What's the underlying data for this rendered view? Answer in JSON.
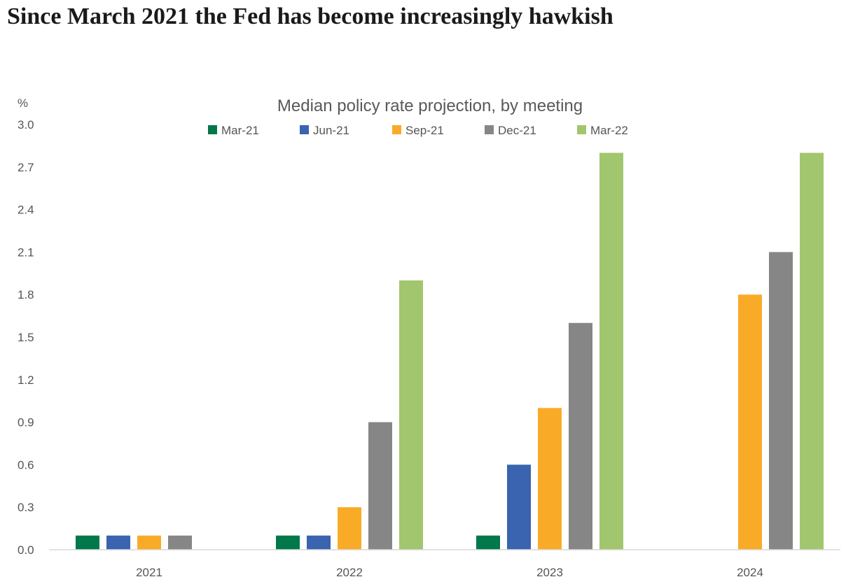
{
  "headline": "Since March 2021 the Fed has become increasingly hawkish",
  "chart_data": {
    "type": "bar",
    "title": "Median policy rate projection, by meeting",
    "ylabel": "%",
    "xlabel": "",
    "categories": [
      "2021",
      "2022",
      "2023",
      "2024"
    ],
    "ylim": [
      0,
      3.0
    ],
    "yticks": [
      "0.0",
      "0.3",
      "0.6",
      "0.9",
      "1.2",
      "1.5",
      "1.8",
      "2.1",
      "2.4",
      "2.7",
      "3.0"
    ],
    "grid": false,
    "legend_position": "top",
    "series": [
      {
        "name": "Mar-21",
        "color": "#00784A",
        "values": [
          0.1,
          0.1,
          0.1,
          null
        ]
      },
      {
        "name": "Jun-21",
        "color": "#3A63B0",
        "values": [
          0.1,
          0.1,
          0.6,
          null
        ]
      },
      {
        "name": "Sep-21",
        "color": "#F9AB28",
        "values": [
          0.1,
          0.3,
          1.0,
          1.8
        ]
      },
      {
        "name": "Dec-21",
        "color": "#868686",
        "values": [
          0.1,
          0.9,
          1.6,
          2.1
        ]
      },
      {
        "name": "Mar-22",
        "color": "#A2C66E",
        "values": [
          null,
          1.9,
          2.8,
          2.8
        ]
      }
    ]
  }
}
